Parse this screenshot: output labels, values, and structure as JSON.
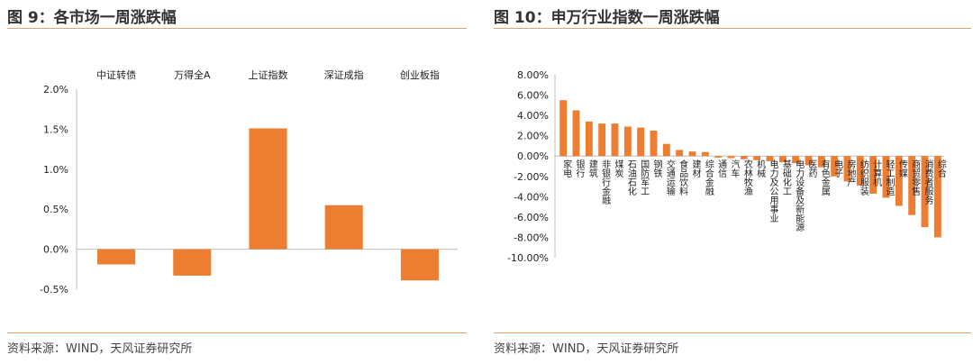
{
  "left": {
    "title": "图 9：各市场一周涨跌幅",
    "source": "资料来源：WIND，天风证券研究所"
  },
  "right": {
    "title": "图 10：申万行业指数一周涨跌幅",
    "source": "资料来源：WIND，天风证券研究所"
  },
  "chart_data": [
    {
      "type": "bar",
      "categories": [
        "中证转债",
        "万得全A",
        "上证指数",
        "深证成指",
        "创业板指"
      ],
      "values": [
        -0.19,
        -0.33,
        1.51,
        0.55,
        -0.39
      ],
      "yticks": [
        "2.0%",
        "1.5%",
        "1.0%",
        "0.5%",
        "0.0%",
        "-0.5%"
      ],
      "ylim": [
        -0.5,
        2.0
      ],
      "color": "#ed7d31",
      "category_labels_position": "top",
      "grid": false
    },
    {
      "type": "bar",
      "categories": [
        "家电",
        "银行",
        "建筑",
        "非银行金融",
        "煤炭",
        "石油石化",
        "国防军工",
        "钢铁",
        "交通运输",
        "食品饮料",
        "建材",
        "综合金融",
        "通信",
        "汽车",
        "农林牧渔",
        "机械",
        "电力及公用事业",
        "基础化工",
        "电力设备及新能源",
        "医药",
        "有色金属",
        "电子",
        "房地产",
        "纺织服装",
        "计算机",
        "轻工制造",
        "传媒",
        "商贸零售",
        "消费者服务",
        "综合"
      ],
      "values": [
        5.5,
        4.5,
        3.4,
        3.2,
        3.2,
        2.9,
        2.8,
        2.5,
        1.2,
        0.6,
        0.45,
        0.4,
        -0.15,
        -0.2,
        -0.3,
        -0.4,
        -0.5,
        -0.6,
        -0.7,
        -0.9,
        -1.1,
        -2.0,
        -2.5,
        -2.9,
        -3.7,
        -4.1,
        -4.9,
        -5.8,
        -7.0,
        -8.0
      ],
      "yticks": [
        "8.00%",
        "6.00%",
        "4.00%",
        "2.00%",
        "0.00%",
        "-2.00%",
        "-4.00%",
        "-6.00%",
        "-8.00%",
        "-10.00%"
      ],
      "ylim": [
        -10,
        8
      ],
      "color": "#ed7d31",
      "category_labels_position": "vertical, below zero line",
      "grid": false
    }
  ]
}
